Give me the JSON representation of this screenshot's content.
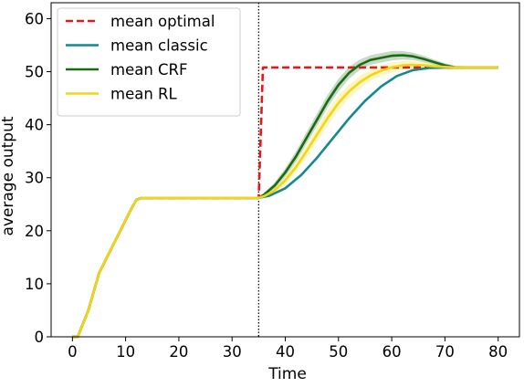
{
  "chart_data": {
    "type": "line",
    "title": "",
    "xlabel": "Time",
    "ylabel": "average output",
    "xlim": [
      -4,
      84
    ],
    "ylim": [
      0,
      63
    ],
    "x_ticks": [
      0,
      10,
      20,
      30,
      40,
      50,
      60,
      70,
      80
    ],
    "y_ticks": [
      0,
      10,
      20,
      30,
      40,
      50,
      60
    ],
    "grid": false,
    "legend_position": "top-left",
    "vertical_marker": {
      "x": 35,
      "style": "dotted",
      "color": "#000000"
    },
    "series": [
      {
        "name": "mean optimal",
        "color": "#e31a1c",
        "style": "dashed",
        "x": [
          0,
          1,
          3,
          5,
          7,
          9,
          11,
          12,
          13,
          15,
          20,
          25,
          30,
          34,
          35,
          35.8,
          36,
          45,
          55,
          65,
          70,
          75,
          80
        ],
        "y": [
          0,
          0,
          5,
          12,
          16,
          20,
          24,
          25.8,
          26.2,
          26.2,
          26.2,
          26.2,
          26.2,
          26.2,
          26.2,
          50.8,
          50.8,
          50.8,
          50.8,
          50.8,
          50.8,
          50.8,
          50.8
        ]
      },
      {
        "name": "mean classic",
        "color": "#13888f",
        "style": "solid",
        "x": [
          0,
          1,
          3,
          5,
          7,
          9,
          11,
          12,
          13,
          15,
          20,
          25,
          30,
          35,
          37,
          40,
          43,
          46,
          49,
          52,
          55,
          58,
          61,
          64,
          67,
          70,
          72,
          75,
          80
        ],
        "y": [
          0,
          0,
          5,
          12,
          16,
          20,
          24,
          25.8,
          26.2,
          26.2,
          26.2,
          26.2,
          26.2,
          26.2,
          26.6,
          28,
          30.5,
          33.8,
          37.5,
          41.2,
          44.5,
          47.2,
          49.2,
          50.3,
          50.7,
          50.8,
          50.8,
          50.8,
          50.8
        ]
      },
      {
        "name": "mean CRF",
        "color": "#1a6b14",
        "style": "solid",
        "band": true,
        "x": [
          0,
          1,
          3,
          5,
          7,
          9,
          11,
          12,
          13,
          15,
          20,
          25,
          30,
          35,
          36,
          38,
          40,
          42,
          44,
          46,
          48,
          50,
          52,
          54,
          56,
          58,
          60,
          62,
          64,
          66,
          68,
          70,
          72,
          75,
          80
        ],
        "y": [
          0,
          0,
          5,
          12,
          16,
          20,
          24,
          25.8,
          26.2,
          26.2,
          26.2,
          26.2,
          26.2,
          26.2,
          26.8,
          28.5,
          31,
          34,
          37.5,
          41,
          44.5,
          47.5,
          49.8,
          51.3,
          52.2,
          52.6,
          53,
          53.1,
          52.9,
          52.4,
          51.8,
          51.2,
          50.8,
          50.8,
          50.8
        ],
        "band_half_width": [
          0,
          0,
          0.2,
          0.3,
          0.3,
          0.3,
          0.3,
          0.3,
          0.2,
          0.2,
          0.1,
          0.1,
          0.1,
          0.1,
          0.3,
          0.6,
          0.8,
          1.0,
          1.1,
          1.2,
          1.2,
          1.2,
          1.1,
          1.0,
          0.9,
          0.9,
          0.9,
          0.8,
          0.7,
          0.6,
          0.5,
          0.4,
          0.3,
          0.2,
          0.1
        ]
      },
      {
        "name": "mean RL",
        "color": "#f2d613",
        "style": "solid",
        "band": true,
        "x": [
          0,
          1,
          3,
          5,
          7,
          9,
          11,
          12,
          13,
          15,
          20,
          25,
          30,
          35,
          36,
          38,
          40,
          42,
          44,
          46,
          48,
          50,
          52,
          54,
          56,
          58,
          60,
          62,
          64,
          66,
          68,
          70,
          72,
          75,
          80
        ],
        "y": [
          0,
          0,
          5,
          12,
          16,
          20,
          24,
          25.8,
          26.2,
          26.2,
          26.2,
          26.2,
          26.2,
          26.2,
          26.5,
          27.6,
          29.5,
          32,
          35,
          38.2,
          41.3,
          44.1,
          46.3,
          48,
          49.3,
          50.2,
          50.8,
          51.2,
          51.3,
          51.2,
          51,
          50.9,
          50.8,
          50.8,
          50.8
        ],
        "band_half_width": [
          0,
          0,
          0.2,
          0.3,
          0.3,
          0.3,
          0.3,
          0.3,
          0.2,
          0.2,
          0.1,
          0.1,
          0.1,
          0.1,
          0.3,
          0.5,
          0.8,
          1.0,
          1.2,
          1.3,
          1.4,
          1.4,
          1.3,
          1.2,
          1.1,
          1.0,
          0.9,
          0.8,
          0.7,
          0.6,
          0.5,
          0.4,
          0.3,
          0.2,
          0.1
        ]
      }
    ]
  }
}
